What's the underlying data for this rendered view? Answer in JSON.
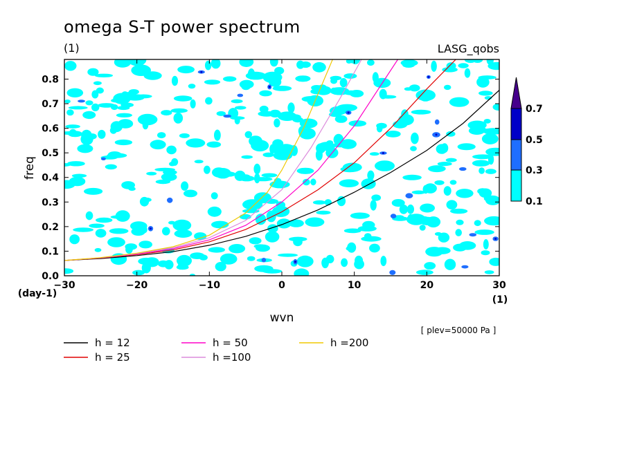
{
  "chart_data": {
    "type": "line",
    "title": "omega S-T power spectrum",
    "subtitle_left": "(1)",
    "subtitle_right": "LASG_qobs",
    "xlabel": "wvn",
    "ylabel": "freq",
    "x_unit": "(1)",
    "y_unit": "(day-1)",
    "annotation": "[ plev=50000 Pa ]",
    "xlim": [
      -30,
      30
    ],
    "ylim": [
      0,
      0.88
    ],
    "x_ticks": [
      "-30",
      "-20",
      "-10",
      "0",
      "10",
      "20",
      "30"
    ],
    "y_ticks": [
      "0.0",
      "0.1",
      "0.2",
      "0.3",
      "0.4",
      "0.5",
      "0.6",
      "0.7",
      "0.8"
    ],
    "colorbar": {
      "levels": [
        "0.1",
        "0.3",
        "0.5",
        "0.7"
      ],
      "colors": [
        "#00ffff",
        "#1e6eff",
        "#0000c8",
        "#46008c"
      ]
    },
    "series": [
      {
        "name": "h = 12",
        "color": "#000000",
        "x": [
          -30,
          -25,
          -20,
          -15,
          -10,
          -5,
          0,
          5,
          10,
          15,
          20,
          25,
          30
        ],
        "y": [
          0.062,
          0.07,
          0.082,
          0.098,
          0.124,
          0.16,
          0.208,
          0.268,
          0.34,
          0.42,
          0.51,
          0.62,
          0.755
        ]
      },
      {
        "name": "h = 25",
        "color": "#e00000",
        "x": [
          -30,
          -25,
          -20,
          -15,
          -10,
          -5,
          0,
          5,
          10,
          15,
          20,
          24
        ],
        "y": [
          0.062,
          0.072,
          0.086,
          0.105,
          0.138,
          0.188,
          0.26,
          0.35,
          0.46,
          0.6,
          0.76,
          0.88
        ]
      },
      {
        "name": "h = 50",
        "color": "#ff00c8",
        "x": [
          -30,
          -25,
          -20,
          -15,
          -10,
          -5,
          0,
          5,
          10,
          14,
          16
        ],
        "y": [
          0.062,
          0.073,
          0.088,
          0.11,
          0.146,
          0.205,
          0.3,
          0.43,
          0.61,
          0.79,
          0.88
        ]
      },
      {
        "name": "h =100",
        "color": "#dc8cdc",
        "x": [
          -30,
          -25,
          -20,
          -15,
          -10,
          -5,
          0,
          4,
          8,
          11
        ],
        "y": [
          0.062,
          0.073,
          0.09,
          0.114,
          0.155,
          0.225,
          0.35,
          0.52,
          0.72,
          0.88
        ]
      },
      {
        "name": "h =200",
        "color": "#f0c800",
        "x": [
          -30,
          -25,
          -20,
          -15,
          -10,
          -5,
          -2,
          0,
          3,
          5,
          7
        ],
        "y": [
          0.062,
          0.074,
          0.092,
          0.118,
          0.165,
          0.255,
          0.34,
          0.43,
          0.6,
          0.74,
          0.88
        ]
      }
    ]
  }
}
